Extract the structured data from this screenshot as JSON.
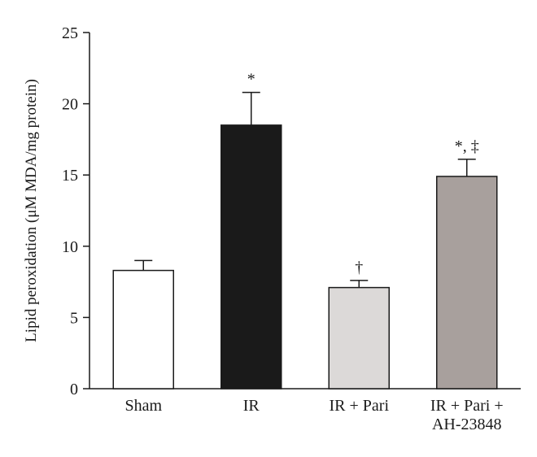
{
  "chart_data": {
    "type": "bar",
    "ylabel": "Lipid peroxidation (μM MDA/mg protein)",
    "ylim": [
      0,
      25
    ],
    "yticks": [
      0,
      5,
      10,
      15,
      20,
      25
    ],
    "categories": [
      [
        "Sham"
      ],
      [
        "IR"
      ],
      [
        "IR + Pari"
      ],
      [
        "IR + Pari +",
        "AH-23848"
      ]
    ],
    "values": [
      8.3,
      18.5,
      7.1,
      14.9
    ],
    "errors": [
      0.7,
      2.3,
      0.5,
      1.2
    ],
    "annotations": [
      "",
      "*",
      "†",
      "*, ‡"
    ],
    "colors": [
      "#ffffff",
      "#1a1a1a",
      "#dcd9d8",
      "#a8a09d"
    ],
    "grid": false,
    "legend": "none"
  }
}
